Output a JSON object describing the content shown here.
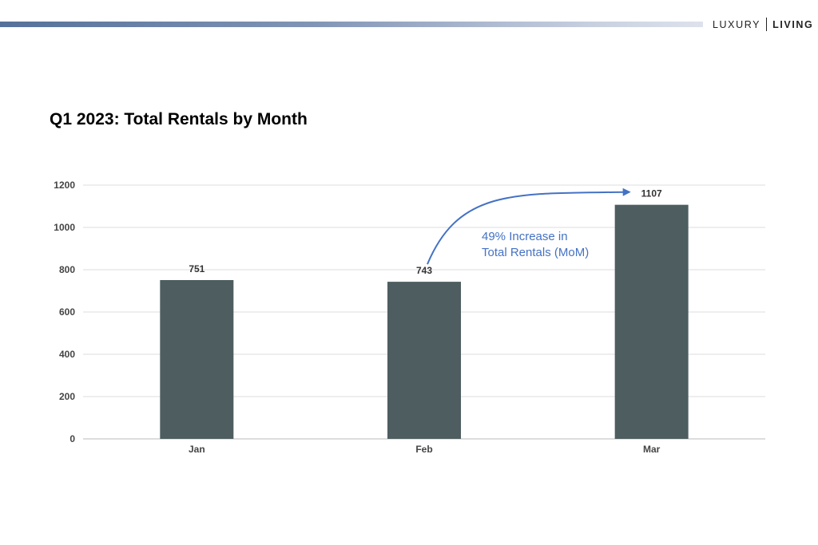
{
  "header": {
    "brand_left": "LUXURY",
    "brand_right": "LIVING"
  },
  "page": {
    "title": "Q1 2023: Total Rentals by Month"
  },
  "colors": {
    "bar": "#4d5d60",
    "annotation": "#4472c4",
    "grid": "#dddddd",
    "axis": "#bbbbbb"
  },
  "chart_data": {
    "type": "bar",
    "categories": [
      "Jan",
      "Feb",
      "Mar"
    ],
    "values": [
      751,
      743,
      1107
    ],
    "data_labels": [
      "751",
      "743",
      "1107"
    ],
    "yticks": [
      0,
      200,
      400,
      600,
      800,
      1000,
      1200
    ],
    "ylim": [
      0,
      1200
    ],
    "grid": true,
    "legend": "none",
    "annotation": {
      "lines": [
        "49% Increase in",
        "Total Rentals (MoM)"
      ],
      "from_category": "Feb",
      "to_category": "Mar"
    }
  }
}
